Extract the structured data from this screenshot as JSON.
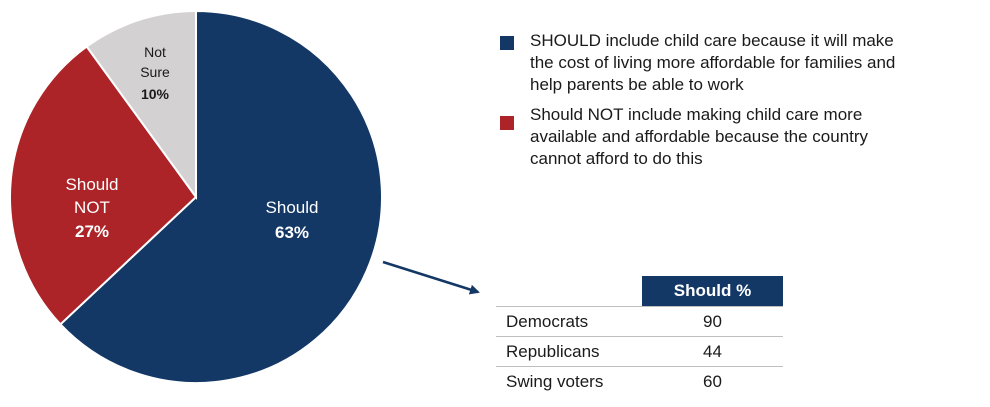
{
  "chart_data": {
    "type": "pie",
    "slices": [
      {
        "label": "Should",
        "pct_label": "63%",
        "value": 63,
        "color": "#143866",
        "label_color": "#ffffff"
      },
      {
        "label": "Should NOT",
        "label_lines": [
          "Should",
          "NOT"
        ],
        "pct_label": "27%",
        "value": 27,
        "color": "#ac2428",
        "label_color": "#ffffff"
      },
      {
        "label": "Not Sure",
        "label_lines": [
          "Not",
          "Sure"
        ],
        "pct_label": "10%",
        "value": 10,
        "color": "#d3d1d1",
        "label_color": "#1a1a1a"
      }
    ],
    "legend": [
      {
        "text_lines": [
          "SHOULD include child care because it will make",
          "the cost of living more affordable for families and",
          "help parents be able to work"
        ],
        "color": "#143866"
      },
      {
        "text_lines": [
          "Should NOT include making child care more",
          "available and affordable because the country",
          "cannot afford to do this"
        ],
        "color": "#ac2428"
      }
    ],
    "legend_placement": "right"
  },
  "subtable": {
    "header": "Should %",
    "rows": [
      {
        "group": "Democrats",
        "value": "90"
      },
      {
        "group": "Republicans",
        "value": "44"
      },
      {
        "group": "Swing voters",
        "value": "60"
      }
    ]
  },
  "colors": {
    "arrow": "#143866",
    "table_header_bg": "#143866"
  }
}
